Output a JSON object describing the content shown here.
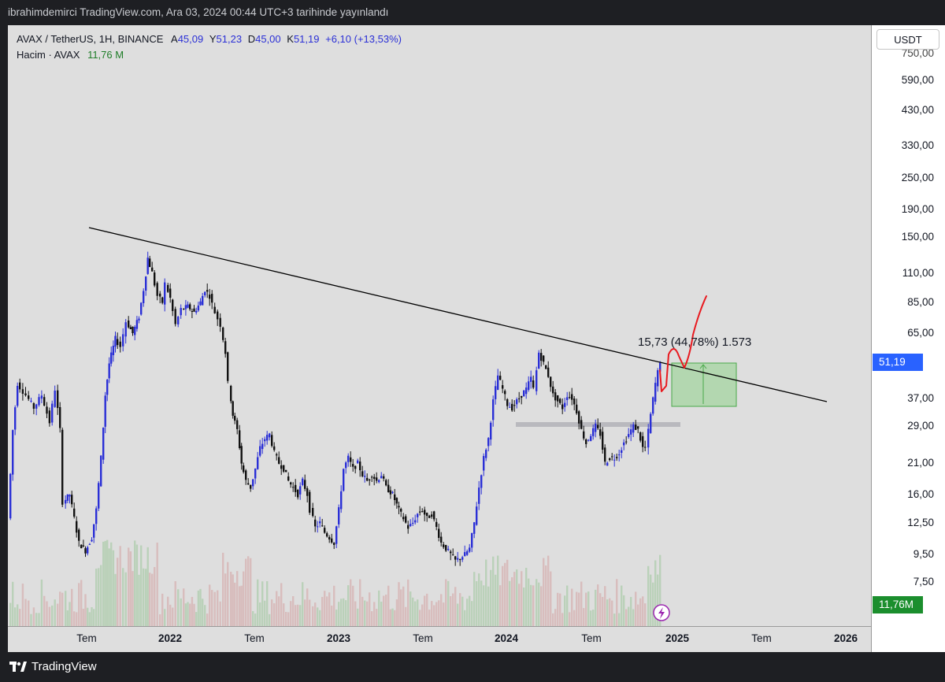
{
  "header": {
    "publish_line": "ibrahimdemirci TradingView.com, Ara 03, 2024 00:44 UTC+3 tarihinde yayınlandı"
  },
  "legend": {
    "symbol": "AVAX / TetherUS, 1H, BINANCE",
    "o_key": "A",
    "o_val": "45,09",
    "h_key": "Y",
    "h_val": "51,23",
    "l_key": "D",
    "l_val": "45,00",
    "c_key": "K",
    "c_val": "51,19",
    "change": "+6,10 (+13,53%)",
    "volume_label": "Hacim · AVAX",
    "volume_value": "11,76 M"
  },
  "price_axis": {
    "currency_button": "USDT",
    "labels": [
      "590,00",
      "430,00",
      "330,00",
      "250,00",
      "190,00",
      "150,00",
      "110,00",
      "85,00",
      "65,00",
      "37,00",
      "29,00",
      "21,00",
      "16,00",
      "12,50",
      "9,50",
      "7,50"
    ],
    "partial_top": "750,00",
    "current_price": "51,19",
    "current_volume": "11,76M"
  },
  "time_axis": {
    "labels": [
      "Tem",
      "2022",
      "Tem",
      "2023",
      "Tem",
      "2024",
      "Tem",
      "2025",
      "Tem",
      "2026"
    ]
  },
  "annotation": {
    "measure_text": "15,73 (44,78%) 1.573"
  },
  "footer": {
    "brand": "TradingView"
  },
  "colors": {
    "up": "#2a2fd6",
    "down": "#111111",
    "background": "#dedede",
    "trendline": "#000000",
    "projection": "#e8191f",
    "measure_box": "#8fd18a",
    "price_tag": "#2962ff",
    "volume_tag": "#1b8e2d"
  },
  "chart_data": {
    "type": "candlestick",
    "symbol": "AVAX / TetherUS",
    "scale": "log",
    "x": [
      "2021-07",
      "2021-08",
      "2021-09",
      "2021-10",
      "2021-11",
      "2021-12",
      "2022-01",
      "2022-02",
      "2022-03",
      "2022-04",
      "2022-05",
      "2022-06",
      "2022-07",
      "2022-08",
      "2022-09",
      "2022-10",
      "2022-11",
      "2022-12",
      "2023-01",
      "2023-02",
      "2023-03",
      "2023-04",
      "2023-05",
      "2023-06",
      "2023-07",
      "2023-08",
      "2023-09",
      "2023-10",
      "2023-11",
      "2023-12",
      "2024-01",
      "2024-02",
      "2024-03",
      "2024-04",
      "2024-05",
      "2024-06",
      "2024-07",
      "2024-08",
      "2024-09",
      "2024-10",
      "2024-11",
      "2024-12"
    ],
    "close": [
      13,
      33,
      60,
      65,
      105,
      110,
      75,
      80,
      95,
      70,
      30,
      19,
      22,
      24,
      17,
      16,
      13,
      11,
      18,
      20,
      17,
      18,
      15,
      12,
      13,
      11,
      9.5,
      10,
      21,
      40,
      36,
      40,
      55,
      38,
      35,
      28,
      26,
      22,
      24,
      28,
      45,
      51.19
    ],
    "annotations": [
      "descending trendline",
      "support zone ~29",
      "measured move box 15,73 (44,78%)",
      "hand-drawn projection to ~90"
    ],
    "current_price": 51.19
  }
}
